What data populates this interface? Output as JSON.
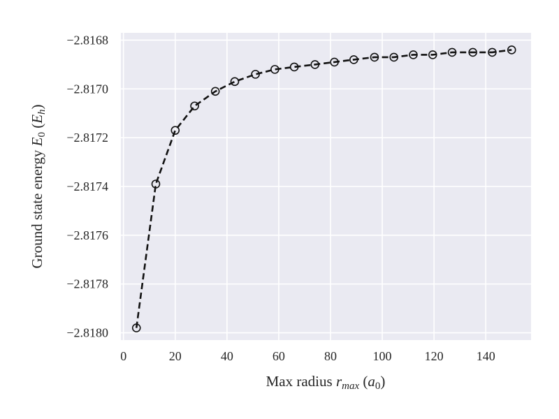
{
  "chart_data": {
    "type": "line",
    "title": "",
    "xlabel": {
      "prefix": "Max radius ",
      "var": "r",
      "sub": "max",
      "unit_open": " (",
      "unit": "a",
      "unit_sub": "0",
      "unit_close": ")"
    },
    "ylabel": {
      "prefix": "Ground state energy ",
      "var": "E",
      "sub": "0",
      "unit_open": " (",
      "unit": "E",
      "unit_sub": "h",
      "unit_close": ")"
    },
    "xlim": [
      -1,
      157.5
    ],
    "ylim": [
      -2.81803,
      -2.81677
    ],
    "xticks": [
      0,
      20,
      40,
      60,
      80,
      100,
      120,
      140
    ],
    "xtick_labels": [
      "0",
      "20",
      "40",
      "60",
      "80",
      "100",
      "120",
      "140"
    ],
    "yticks": [
      -2.8168,
      -2.817,
      -2.8172,
      -2.8174,
      -2.8176,
      -2.8178,
      -2.818
    ],
    "ytick_labels": [
      "−2.8168",
      "−2.8170",
      "−2.8172",
      "−2.8174",
      "−2.8176",
      "−2.8178",
      "−2.8180"
    ],
    "grid": true,
    "legend": "none",
    "series": [
      {
        "style": "dashed line with open circle markers",
        "color": "#111111",
        "x": [
          5,
          12.5,
          20,
          27.5,
          35.5,
          43,
          51,
          58.5,
          66,
          74,
          81.5,
          89,
          97,
          104.5,
          112,
          119.5,
          127,
          135,
          142.5,
          150
        ],
        "y": [
          -2.81798,
          -2.81739,
          -2.81717,
          -2.81707,
          -2.81701,
          -2.81697,
          -2.81694,
          -2.81692,
          -2.81691,
          -2.8169,
          -2.81689,
          -2.81688,
          -2.81687,
          -2.81687,
          -2.81686,
          -2.81686,
          -2.81685,
          -2.81685,
          -2.81685,
          -2.81684
        ]
      }
    ],
    "colors": {
      "background": "#eaeaf2",
      "grid": "#ffffff",
      "line": "#111111"
    }
  }
}
